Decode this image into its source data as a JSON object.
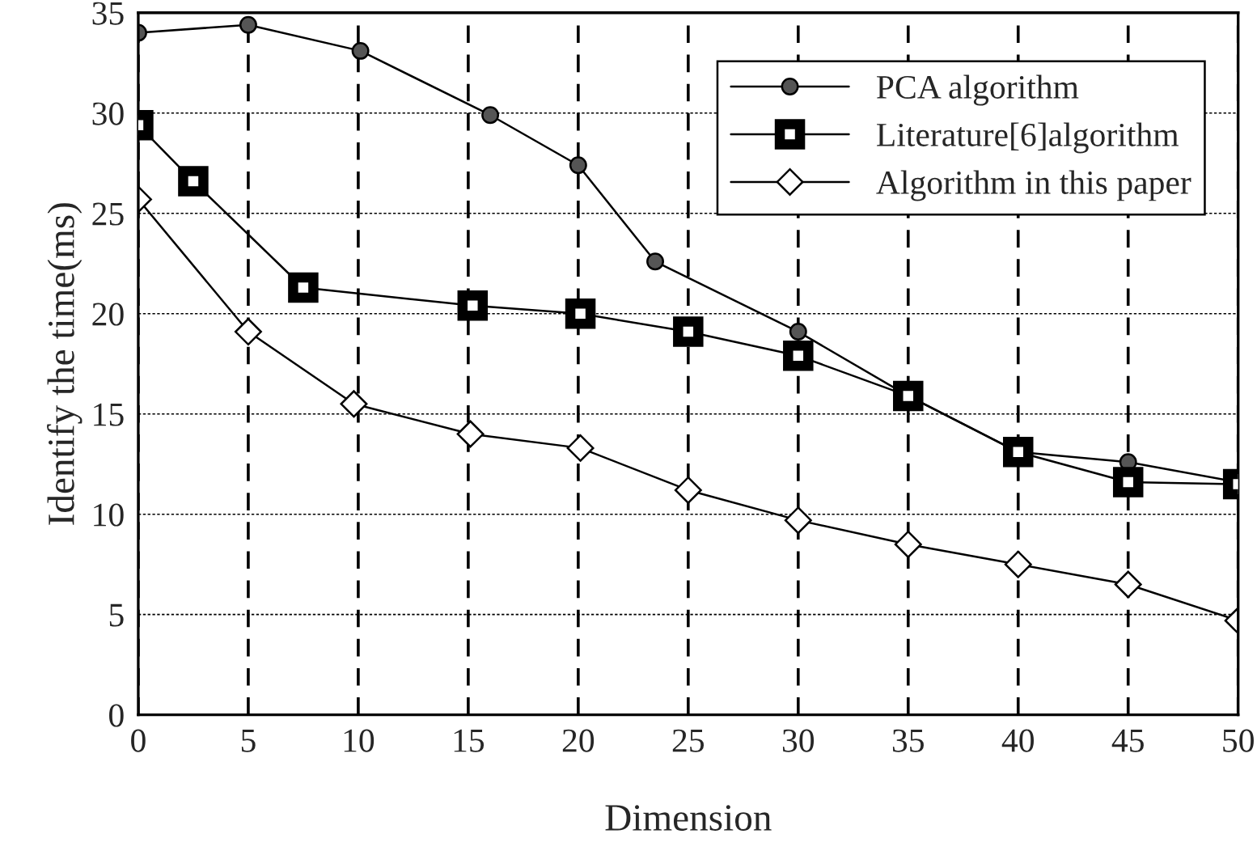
{
  "chart_data": {
    "type": "line",
    "xlabel": "Dimension",
    "ylabel": "Identify the time(ms)",
    "xlim": [
      0,
      50
    ],
    "xticks": [
      0,
      5,
      10,
      15,
      20,
      25,
      30,
      35,
      40,
      45,
      50
    ],
    "ylim": [
      0,
      35
    ],
    "yticks": [
      0,
      5,
      10,
      15,
      20,
      25,
      30,
      35
    ],
    "grid": true,
    "legend": "top right",
    "series": [
      {
        "name": "PCA algorithm",
        "color": "#000000",
        "marker": "circle",
        "x": [
          0,
          5,
          10.1,
          16.0,
          20,
          23.5,
          30,
          35,
          40,
          45,
          50
        ],
        "values": [
          34.0,
          34.4,
          33.1,
          29.9,
          27.4,
          22.6,
          19.1,
          15.9,
          13.1,
          12.6,
          11.6
        ]
      },
      {
        "name": "Literature[6]algorithm",
        "color": "#000000",
        "marker": "square",
        "x": [
          0,
          2.5,
          7.5,
          15.2,
          20.1,
          25,
          30,
          35,
          40,
          45,
          50
        ],
        "values": [
          29.4,
          26.6,
          21.3,
          20.4,
          20.0,
          19.1,
          17.9,
          15.9,
          13.1,
          11.6,
          11.5
        ]
      },
      {
        "name": "Algorithm in this paper",
        "color": "#000000",
        "marker": "diamond",
        "x": [
          0,
          5,
          9.8,
          15.1,
          20.1,
          25,
          30,
          35,
          40,
          45,
          50
        ],
        "values": [
          25.7,
          19.1,
          15.5,
          14.0,
          13.3,
          11.2,
          9.7,
          8.5,
          7.5,
          6.5,
          4.7
        ]
      }
    ]
  }
}
